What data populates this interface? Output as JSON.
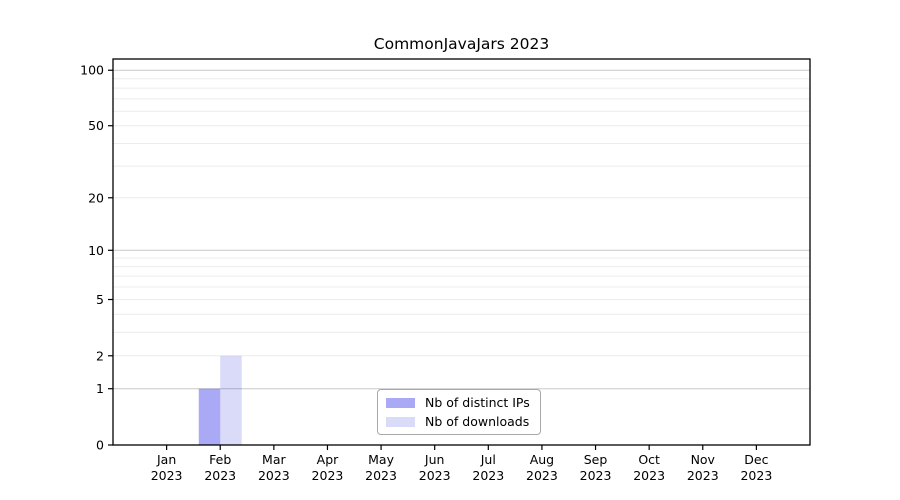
{
  "chart_data": {
    "type": "bar",
    "title": "CommonJavaJars 2023",
    "categories": [
      "Jan 2023",
      "Feb 2023",
      "Mar 2023",
      "Apr 2023",
      "May 2023",
      "Jun 2023",
      "Jul 2023",
      "Aug 2023",
      "Sep 2023",
      "Oct 2023",
      "Nov 2023",
      "Dec 2023"
    ],
    "series": [
      {
        "name": "Nb of distinct IPs",
        "color": "#0A0AE659",
        "values": [
          0,
          1,
          0,
          0,
          0,
          0,
          0,
          0,
          0,
          0,
          0,
          0
        ]
      },
      {
        "name": "Nb of downloads",
        "color": "#0A0AD726",
        "values": [
          0,
          2,
          0,
          0,
          0,
          0,
          0,
          0,
          0,
          0,
          0,
          0
        ]
      }
    ],
    "xlabel": "",
    "ylabel": "",
    "yscale": "log1p",
    "ylim": [
      0,
      115
    ],
    "yticks": [
      0,
      1,
      2,
      5,
      10,
      20,
      50,
      100
    ],
    "gridlines": {
      "major": [
        1,
        10,
        100
      ],
      "minor": [
        2,
        3,
        4,
        5,
        6,
        7,
        8,
        9,
        20,
        30,
        40,
        50,
        60,
        70,
        80,
        90
      ]
    },
    "grid": "on",
    "legend_position": "bottom-center-inside",
    "colors": {
      "major_grid": "#c8c8c8",
      "minor_grid": "#ececec",
      "axis": "#000000",
      "text": "#000000",
      "legend_border": "#a8a8a8"
    }
  }
}
